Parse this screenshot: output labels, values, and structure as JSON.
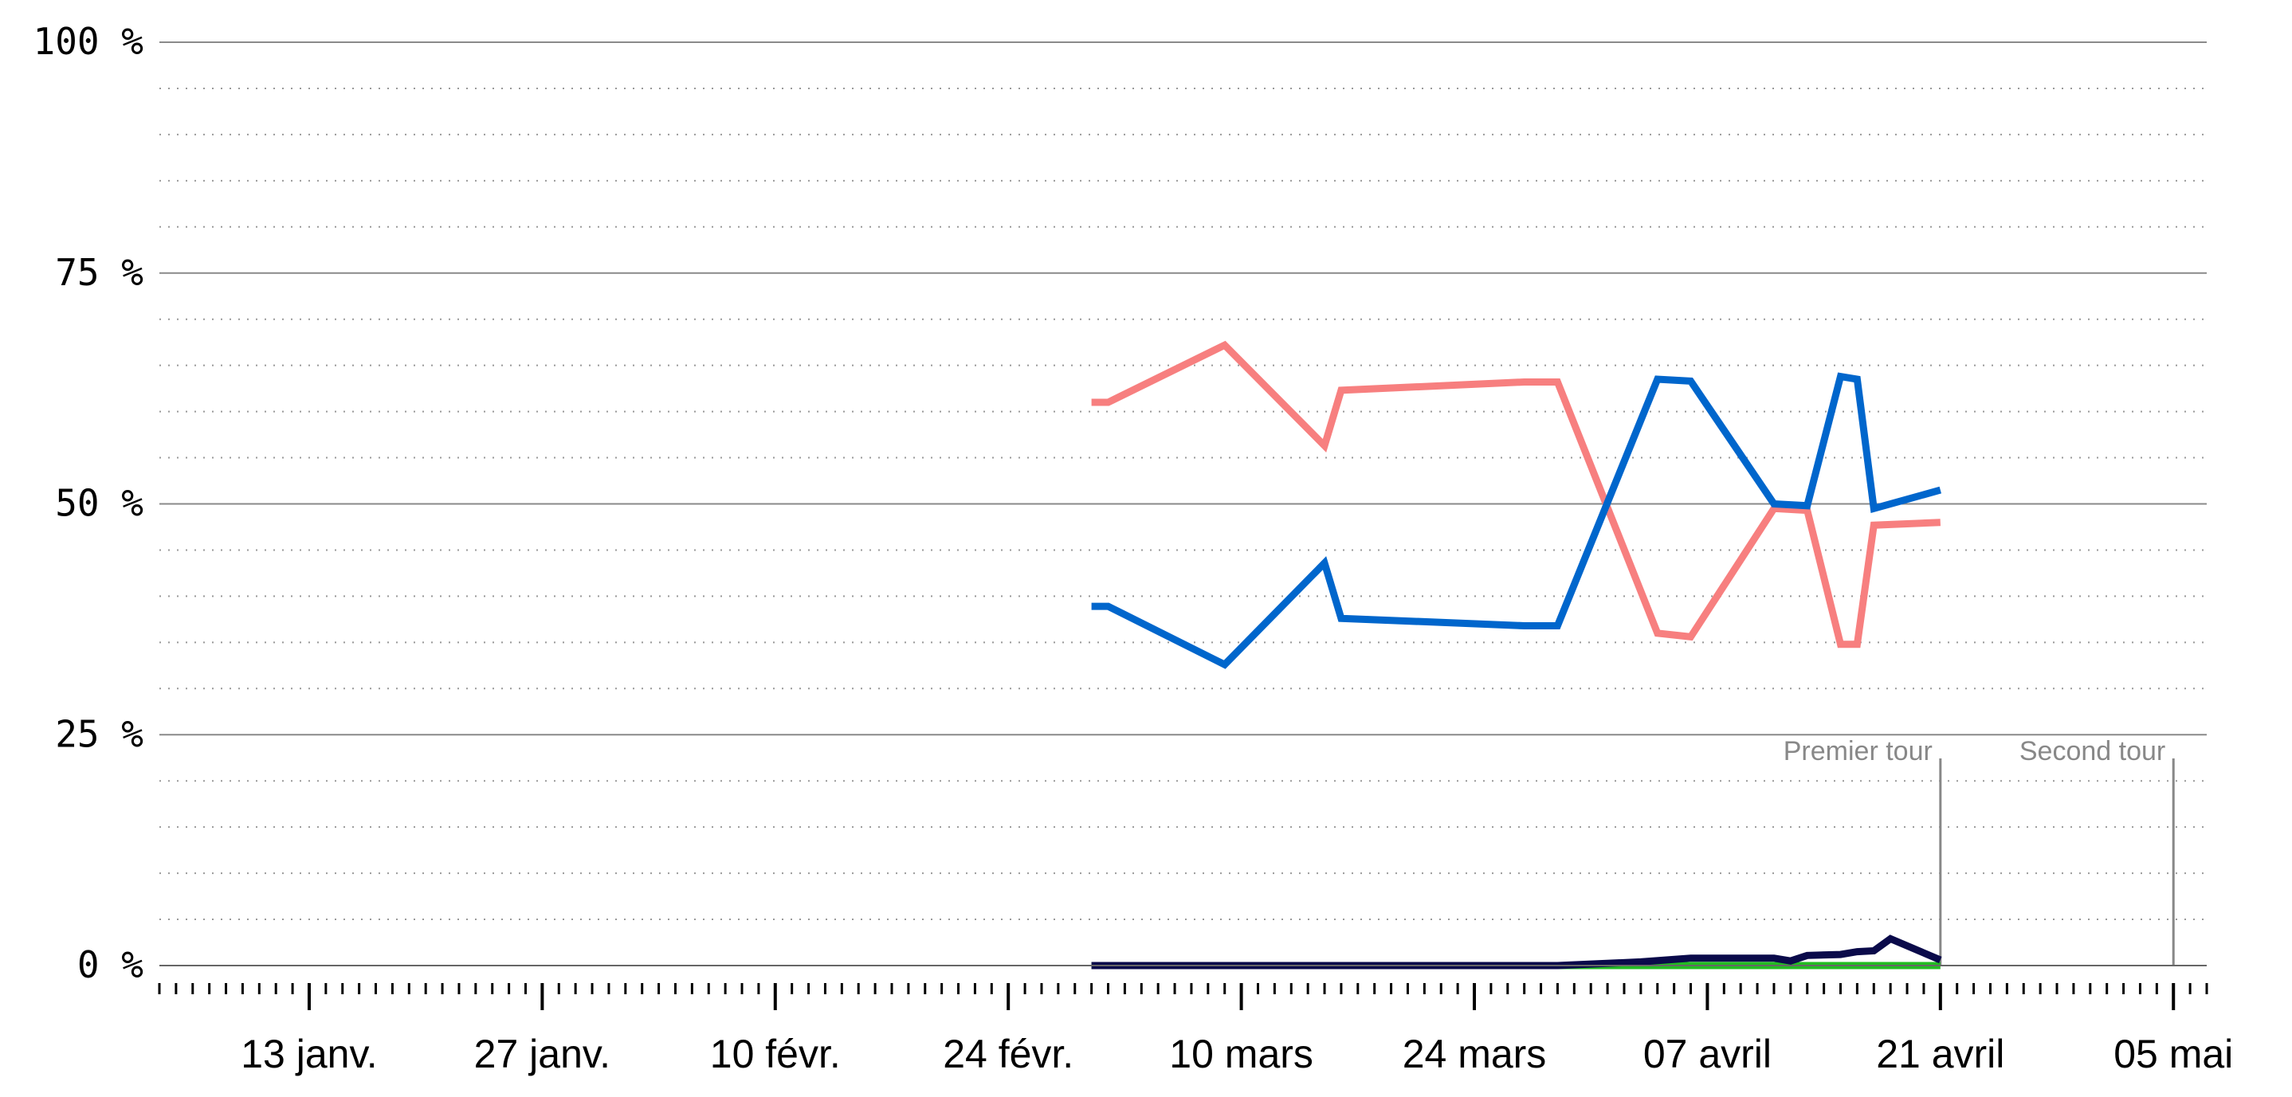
{
  "chart_data": {
    "type": "line",
    "title": "",
    "xlabel": "",
    "ylabel": "",
    "ylim": [
      0,
      100
    ],
    "xlim": [
      "2017-01-04",
      "2017-05-07"
    ],
    "yticks": [
      {
        "value": 0,
        "label": "0 %"
      },
      {
        "value": 25,
        "label": "25 %"
      },
      {
        "value": 50,
        "label": "50 %"
      },
      {
        "value": 75,
        "label": "75 %"
      },
      {
        "value": 100,
        "label": "100 %"
      }
    ],
    "xticks": [
      {
        "date": "2017-01-13",
        "label": "13 janv."
      },
      {
        "date": "2017-01-27",
        "label": "27 janv."
      },
      {
        "date": "2017-02-10",
        "label": "10 févr."
      },
      {
        "date": "2017-02-24",
        "label": "24 févr."
      },
      {
        "date": "2017-03-10",
        "label": "10 mars"
      },
      {
        "date": "2017-03-24",
        "label": "24 mars"
      },
      {
        "date": "2017-04-07",
        "label": "07 avril"
      },
      {
        "date": "2017-04-21",
        "label": "21 avril"
      },
      {
        "date": "2017-05-05",
        "label": "05 mai"
      }
    ],
    "grid": {
      "major": true,
      "minor_dotted": true
    },
    "annotations": [
      {
        "date": "2017-04-21",
        "label": "Premier tour"
      },
      {
        "date": "2017-05-05",
        "label": "Second tour"
      }
    ],
    "series": [
      {
        "color": "#f77f7f",
        "points": [
          [
            "2017-03-01",
            61
          ],
          [
            "2017-03-02",
            61
          ],
          [
            "2017-03-09",
            67.2
          ],
          [
            "2017-03-15",
            56.3
          ],
          [
            "2017-03-16",
            62.3
          ],
          [
            "2017-03-27",
            63.2
          ],
          [
            "2017-03-29",
            63.2
          ],
          [
            "2017-04-04",
            36
          ],
          [
            "2017-04-06",
            35.6
          ],
          [
            "2017-04-11",
            49.5
          ],
          [
            "2017-04-13",
            49.3
          ],
          [
            "2017-04-15",
            34.8
          ],
          [
            "2017-04-16",
            34.8
          ],
          [
            "2017-04-17",
            47.7
          ],
          [
            "2017-04-21",
            48
          ]
        ]
      },
      {
        "color": "#0066cc",
        "points": [
          [
            "2017-03-01",
            38.9
          ],
          [
            "2017-03-02",
            38.9
          ],
          [
            "2017-03-09",
            32.6
          ],
          [
            "2017-03-15",
            43.6
          ],
          [
            "2017-03-16",
            37.6
          ],
          [
            "2017-03-27",
            36.8
          ],
          [
            "2017-03-29",
            36.8
          ],
          [
            "2017-04-04",
            63.5
          ],
          [
            "2017-04-06",
            63.3
          ],
          [
            "2017-04-11",
            50
          ],
          [
            "2017-04-13",
            49.8
          ],
          [
            "2017-04-15",
            63.8
          ],
          [
            "2017-04-16",
            63.5
          ],
          [
            "2017-04-17",
            49.5
          ],
          [
            "2017-04-21",
            51.5
          ]
        ]
      },
      {
        "color": "#22bb22",
        "points": [
          [
            "2017-03-01",
            0
          ],
          [
            "2017-03-27",
            0
          ],
          [
            "2017-04-06",
            0
          ],
          [
            "2017-04-11",
            0
          ],
          [
            "2017-04-21",
            0
          ]
        ]
      },
      {
        "color": "#0a0a4a",
        "points": [
          [
            "2017-03-01",
            0
          ],
          [
            "2017-03-27",
            0
          ],
          [
            "2017-03-29",
            0
          ],
          [
            "2017-04-03",
            0.4
          ],
          [
            "2017-04-06",
            0.8
          ],
          [
            "2017-04-11",
            0.8
          ],
          [
            "2017-04-12",
            0.5
          ],
          [
            "2017-04-13",
            1.1
          ],
          [
            "2017-04-15",
            1.2
          ],
          [
            "2017-04-16",
            1.5
          ],
          [
            "2017-04-17",
            1.6
          ],
          [
            "2017-04-18",
            2.9
          ],
          [
            "2017-04-21",
            0.6
          ]
        ]
      }
    ]
  }
}
